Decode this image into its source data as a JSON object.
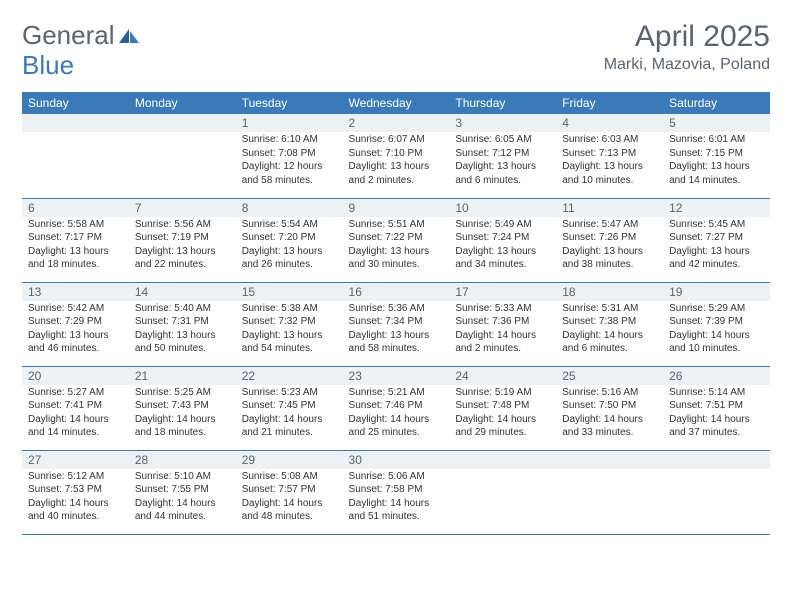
{
  "logo": {
    "general": "General",
    "blue": "Blue"
  },
  "title": "April 2025",
  "location": "Marki, Mazovia, Poland",
  "colors": {
    "header_bg": "#3a7ab8",
    "header_text": "#ffffff",
    "daynum_bg": "#eef1f4",
    "border": "#3a7ab8",
    "body_text": "#333333",
    "title_text": "#5a6570"
  },
  "weekdays": [
    "Sunday",
    "Monday",
    "Tuesday",
    "Wednesday",
    "Thursday",
    "Friday",
    "Saturday"
  ],
  "weeks": [
    [
      null,
      null,
      {
        "n": "1",
        "sr": "Sunrise: 6:10 AM",
        "ss": "Sunset: 7:08 PM",
        "d1": "Daylight: 12 hours",
        "d2": "and 58 minutes."
      },
      {
        "n": "2",
        "sr": "Sunrise: 6:07 AM",
        "ss": "Sunset: 7:10 PM",
        "d1": "Daylight: 13 hours",
        "d2": "and 2 minutes."
      },
      {
        "n": "3",
        "sr": "Sunrise: 6:05 AM",
        "ss": "Sunset: 7:12 PM",
        "d1": "Daylight: 13 hours",
        "d2": "and 6 minutes."
      },
      {
        "n": "4",
        "sr": "Sunrise: 6:03 AM",
        "ss": "Sunset: 7:13 PM",
        "d1": "Daylight: 13 hours",
        "d2": "and 10 minutes."
      },
      {
        "n": "5",
        "sr": "Sunrise: 6:01 AM",
        "ss": "Sunset: 7:15 PM",
        "d1": "Daylight: 13 hours",
        "d2": "and 14 minutes."
      }
    ],
    [
      {
        "n": "6",
        "sr": "Sunrise: 5:58 AM",
        "ss": "Sunset: 7:17 PM",
        "d1": "Daylight: 13 hours",
        "d2": "and 18 minutes."
      },
      {
        "n": "7",
        "sr": "Sunrise: 5:56 AM",
        "ss": "Sunset: 7:19 PM",
        "d1": "Daylight: 13 hours",
        "d2": "and 22 minutes."
      },
      {
        "n": "8",
        "sr": "Sunrise: 5:54 AM",
        "ss": "Sunset: 7:20 PM",
        "d1": "Daylight: 13 hours",
        "d2": "and 26 minutes."
      },
      {
        "n": "9",
        "sr": "Sunrise: 5:51 AM",
        "ss": "Sunset: 7:22 PM",
        "d1": "Daylight: 13 hours",
        "d2": "and 30 minutes."
      },
      {
        "n": "10",
        "sr": "Sunrise: 5:49 AM",
        "ss": "Sunset: 7:24 PM",
        "d1": "Daylight: 13 hours",
        "d2": "and 34 minutes."
      },
      {
        "n": "11",
        "sr": "Sunrise: 5:47 AM",
        "ss": "Sunset: 7:26 PM",
        "d1": "Daylight: 13 hours",
        "d2": "and 38 minutes."
      },
      {
        "n": "12",
        "sr": "Sunrise: 5:45 AM",
        "ss": "Sunset: 7:27 PM",
        "d1": "Daylight: 13 hours",
        "d2": "and 42 minutes."
      }
    ],
    [
      {
        "n": "13",
        "sr": "Sunrise: 5:42 AM",
        "ss": "Sunset: 7:29 PM",
        "d1": "Daylight: 13 hours",
        "d2": "and 46 minutes."
      },
      {
        "n": "14",
        "sr": "Sunrise: 5:40 AM",
        "ss": "Sunset: 7:31 PM",
        "d1": "Daylight: 13 hours",
        "d2": "and 50 minutes."
      },
      {
        "n": "15",
        "sr": "Sunrise: 5:38 AM",
        "ss": "Sunset: 7:32 PM",
        "d1": "Daylight: 13 hours",
        "d2": "and 54 minutes."
      },
      {
        "n": "16",
        "sr": "Sunrise: 5:36 AM",
        "ss": "Sunset: 7:34 PM",
        "d1": "Daylight: 13 hours",
        "d2": "and 58 minutes."
      },
      {
        "n": "17",
        "sr": "Sunrise: 5:33 AM",
        "ss": "Sunset: 7:36 PM",
        "d1": "Daylight: 14 hours",
        "d2": "and 2 minutes."
      },
      {
        "n": "18",
        "sr": "Sunrise: 5:31 AM",
        "ss": "Sunset: 7:38 PM",
        "d1": "Daylight: 14 hours",
        "d2": "and 6 minutes."
      },
      {
        "n": "19",
        "sr": "Sunrise: 5:29 AM",
        "ss": "Sunset: 7:39 PM",
        "d1": "Daylight: 14 hours",
        "d2": "and 10 minutes."
      }
    ],
    [
      {
        "n": "20",
        "sr": "Sunrise: 5:27 AM",
        "ss": "Sunset: 7:41 PM",
        "d1": "Daylight: 14 hours",
        "d2": "and 14 minutes."
      },
      {
        "n": "21",
        "sr": "Sunrise: 5:25 AM",
        "ss": "Sunset: 7:43 PM",
        "d1": "Daylight: 14 hours",
        "d2": "and 18 minutes."
      },
      {
        "n": "22",
        "sr": "Sunrise: 5:23 AM",
        "ss": "Sunset: 7:45 PM",
        "d1": "Daylight: 14 hours",
        "d2": "and 21 minutes."
      },
      {
        "n": "23",
        "sr": "Sunrise: 5:21 AM",
        "ss": "Sunset: 7:46 PM",
        "d1": "Daylight: 14 hours",
        "d2": "and 25 minutes."
      },
      {
        "n": "24",
        "sr": "Sunrise: 5:19 AM",
        "ss": "Sunset: 7:48 PM",
        "d1": "Daylight: 14 hours",
        "d2": "and 29 minutes."
      },
      {
        "n": "25",
        "sr": "Sunrise: 5:16 AM",
        "ss": "Sunset: 7:50 PM",
        "d1": "Daylight: 14 hours",
        "d2": "and 33 minutes."
      },
      {
        "n": "26",
        "sr": "Sunrise: 5:14 AM",
        "ss": "Sunset: 7:51 PM",
        "d1": "Daylight: 14 hours",
        "d2": "and 37 minutes."
      }
    ],
    [
      {
        "n": "27",
        "sr": "Sunrise: 5:12 AM",
        "ss": "Sunset: 7:53 PM",
        "d1": "Daylight: 14 hours",
        "d2": "and 40 minutes."
      },
      {
        "n": "28",
        "sr": "Sunrise: 5:10 AM",
        "ss": "Sunset: 7:55 PM",
        "d1": "Daylight: 14 hours",
        "d2": "and 44 minutes."
      },
      {
        "n": "29",
        "sr": "Sunrise: 5:08 AM",
        "ss": "Sunset: 7:57 PM",
        "d1": "Daylight: 14 hours",
        "d2": "and 48 minutes."
      },
      {
        "n": "30",
        "sr": "Sunrise: 5:06 AM",
        "ss": "Sunset: 7:58 PM",
        "d1": "Daylight: 14 hours",
        "d2": "and 51 minutes."
      },
      null,
      null,
      null
    ]
  ]
}
